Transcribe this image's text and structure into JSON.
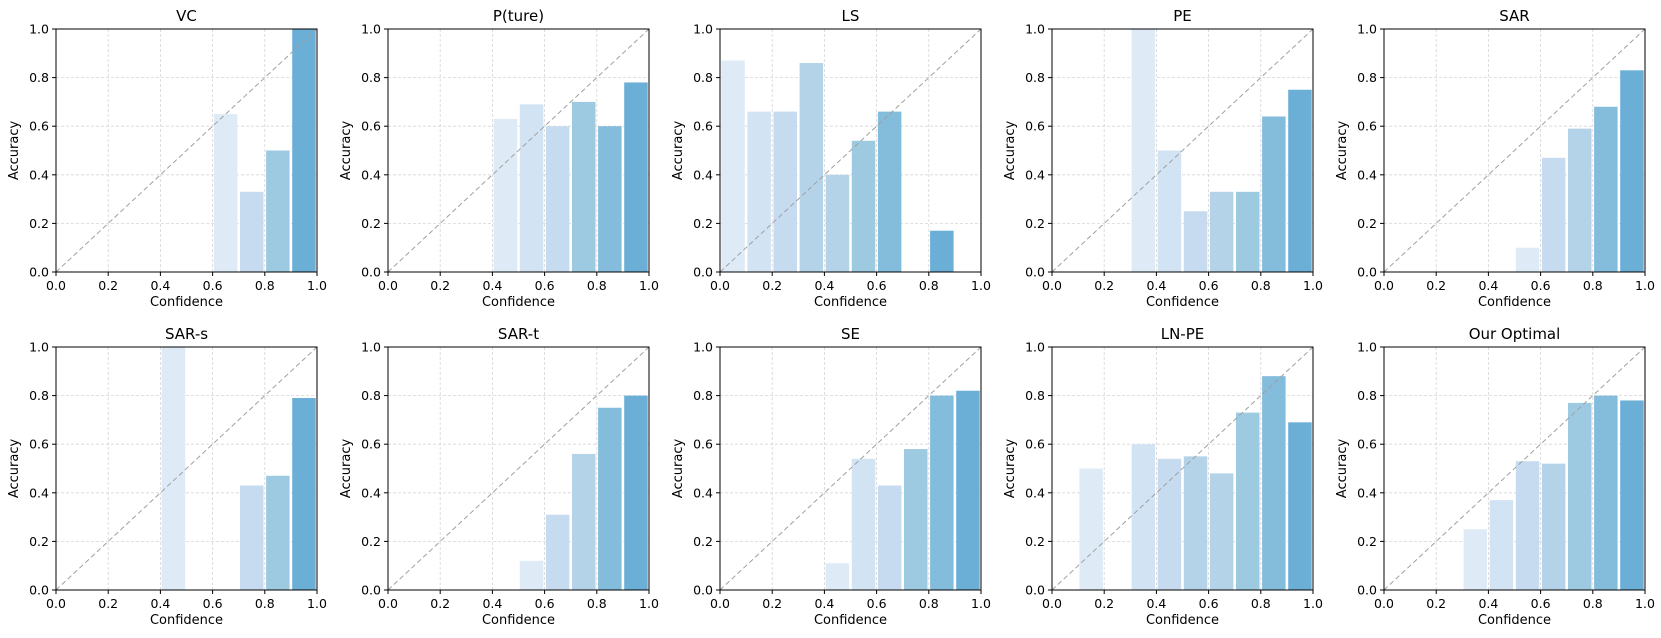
{
  "figure": {
    "grid": true,
    "diagonal_reference": true,
    "bar_colors": [
      "#deebf7",
      "#d2e3f3",
      "#c6dbef",
      "#b4d3e9",
      "#9ecae1",
      "#84bcdc",
      "#6baed6"
    ]
  },
  "chart_data": [
    {
      "type": "bar",
      "title": "VC",
      "xlabel": "Confidence",
      "ylabel": "Accuracy",
      "xlim": [
        0,
        1
      ],
      "ylim": [
        0,
        1
      ],
      "ticks": [
        "0.0",
        "0.2",
        "0.4",
        "0.6",
        "0.8",
        "1.0"
      ],
      "bins": [
        0.6,
        0.7,
        0.8,
        0.9
      ],
      "values": [
        0.65,
        0.33,
        0.5,
        1.0
      ]
    },
    {
      "type": "bar",
      "title": "P(ture)",
      "xlabel": "Confidence",
      "ylabel": "Accuracy",
      "xlim": [
        0,
        1
      ],
      "ylim": [
        0,
        1
      ],
      "ticks": [
        "0.0",
        "0.2",
        "0.4",
        "0.6",
        "0.8",
        "1.0"
      ],
      "bins": [
        0.4,
        0.5,
        0.6,
        0.7,
        0.8,
        0.9
      ],
      "values": [
        0.63,
        0.69,
        0.6,
        0.7,
        0.6,
        0.78
      ]
    },
    {
      "type": "bar",
      "title": "LS",
      "xlabel": "Confidence",
      "ylabel": "Accuracy",
      "xlim": [
        0,
        1
      ],
      "ylim": [
        0,
        1
      ],
      "ticks": [
        "0.0",
        "0.2",
        "0.4",
        "0.6",
        "0.8",
        "1.0"
      ],
      "bins": [
        0.0,
        0.1,
        0.2,
        0.3,
        0.4,
        0.5,
        0.6,
        0.8
      ],
      "values": [
        0.87,
        0.66,
        0.66,
        0.86,
        0.4,
        0.54,
        0.66,
        0.17
      ]
    },
    {
      "type": "bar",
      "title": "PE",
      "xlabel": "Confidence",
      "ylabel": "Accuracy",
      "xlim": [
        0,
        1
      ],
      "ylim": [
        0,
        1
      ],
      "ticks": [
        "0.0",
        "0.2",
        "0.4",
        "0.6",
        "0.8",
        "1.0"
      ],
      "bins": [
        0.3,
        0.4,
        0.5,
        0.6,
        0.7,
        0.8,
        0.9
      ],
      "values": [
        1.0,
        0.5,
        0.25,
        0.33,
        0.33,
        0.64,
        0.75
      ]
    },
    {
      "type": "bar",
      "title": "SAR",
      "xlabel": "Confidence",
      "ylabel": "Accuracy",
      "xlim": [
        0,
        1
      ],
      "ylim": [
        0,
        1
      ],
      "ticks": [
        "0.0",
        "0.2",
        "0.4",
        "0.6",
        "0.8",
        "1.0"
      ],
      "bins": [
        0.5,
        0.6,
        0.7,
        0.8,
        0.9
      ],
      "values": [
        0.1,
        0.47,
        0.59,
        0.68,
        0.83
      ]
    },
    {
      "type": "bar",
      "title": "SAR-s",
      "xlabel": "Confidence",
      "ylabel": "Accuracy",
      "xlim": [
        0,
        1
      ],
      "ylim": [
        0,
        1
      ],
      "ticks": [
        "0.0",
        "0.2",
        "0.4",
        "0.6",
        "0.8",
        "1.0"
      ],
      "bins": [
        0.4,
        0.7,
        0.8,
        0.9
      ],
      "values": [
        1.0,
        0.43,
        0.47,
        0.79
      ]
    },
    {
      "type": "bar",
      "title": "SAR-t",
      "xlabel": "Confidence",
      "ylabel": "Accuracy",
      "xlim": [
        0,
        1
      ],
      "ylim": [
        0,
        1
      ],
      "ticks": [
        "0.0",
        "0.2",
        "0.4",
        "0.6",
        "0.8",
        "1.0"
      ],
      "bins": [
        0.5,
        0.6,
        0.7,
        0.8,
        0.9
      ],
      "values": [
        0.12,
        0.31,
        0.56,
        0.75,
        0.8
      ]
    },
    {
      "type": "bar",
      "title": "SE",
      "xlabel": "Confidence",
      "ylabel": "Accuracy",
      "xlim": [
        0,
        1
      ],
      "ylim": [
        0,
        1
      ],
      "ticks": [
        "0.0",
        "0.2",
        "0.4",
        "0.6",
        "0.8",
        "1.0"
      ],
      "bins": [
        0.4,
        0.5,
        0.6,
        0.7,
        0.8,
        0.9
      ],
      "values": [
        0.11,
        0.54,
        0.43,
        0.58,
        0.8,
        0.82
      ]
    },
    {
      "type": "bar",
      "title": "LN-PE",
      "xlabel": "Confidence",
      "ylabel": "Accuracy",
      "xlim": [
        0,
        1
      ],
      "ylim": [
        0,
        1
      ],
      "ticks": [
        "0.0",
        "0.2",
        "0.4",
        "0.6",
        "0.8",
        "1.0"
      ],
      "bins": [
        0.1,
        0.3,
        0.4,
        0.5,
        0.6,
        0.7,
        0.8,
        0.9
      ],
      "values": [
        0.5,
        0.6,
        0.54,
        0.55,
        0.48,
        0.73,
        0.88,
        0.69
      ]
    },
    {
      "type": "bar",
      "title": "Our Optimal",
      "xlabel": "Confidence",
      "ylabel": "Accuracy",
      "xlim": [
        0,
        1
      ],
      "ylim": [
        0,
        1
      ],
      "ticks": [
        "0.0",
        "0.2",
        "0.4",
        "0.6",
        "0.8",
        "1.0"
      ],
      "bins": [
        0.3,
        0.4,
        0.5,
        0.6,
        0.7,
        0.8,
        0.9
      ],
      "values": [
        0.25,
        0.37,
        0.53,
        0.52,
        0.77,
        0.8,
        0.78
      ]
    }
  ]
}
